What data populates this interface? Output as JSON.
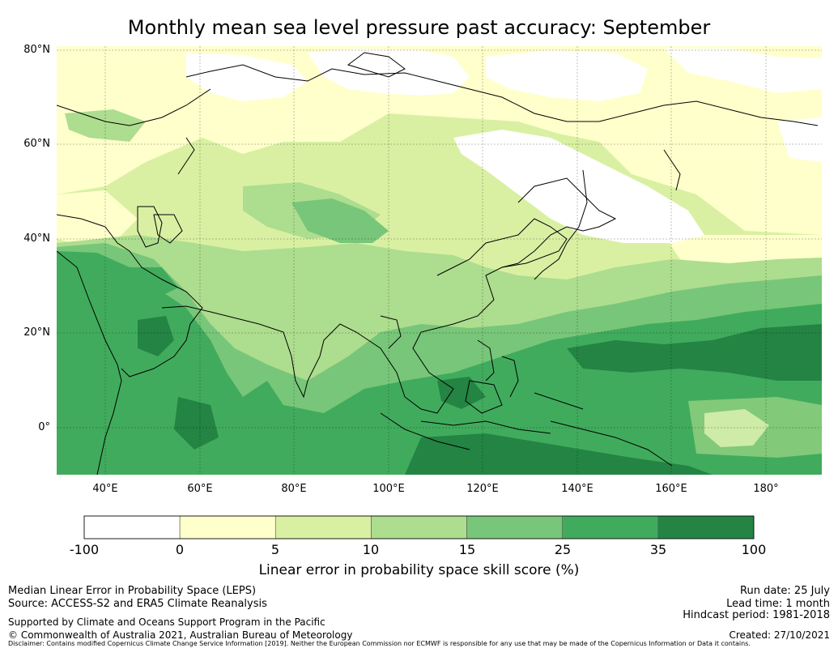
{
  "title": "Monthly mean sea level pressure past accuracy: September",
  "map": {
    "lat_labels": [
      "80°N",
      "60°N",
      "40°N",
      "20°N",
      "0°"
    ],
    "lon_labels": [
      "40°E",
      "60°E",
      "80°E",
      "100°E",
      "120°E",
      "140°E",
      "160°E",
      "180°"
    ],
    "lon_range": [
      30,
      192
    ],
    "lat_range": [
      -10,
      80
    ]
  },
  "colorbar": {
    "ticks": [
      "-100",
      "0",
      "5",
      "10",
      "15",
      "25",
      "35",
      "100"
    ],
    "colors": [
      "#ffffff",
      "#ffffcc",
      "#d9f0a3",
      "#addd8e",
      "#78c679",
      "#41ab5d",
      "#238443"
    ],
    "label": "Linear error in probability space skill score (%)"
  },
  "footer": {
    "line1": "Median Linear Error in Probability Space (LEPS)",
    "line2": "Source: ACCESS-S2 and ERA5 Climate Reanalysis",
    "supported": "Supported by Climate and Oceans Support Program in the Pacific",
    "copyright": "© Commonwealth of Australia 2021, Australian Bureau of Meteorology",
    "run_date": "Run date: 25 July",
    "lead_time": "Lead time: 1 month",
    "hindcast": "Hindcast period: 1981-2018",
    "created": "Created: 27/10/2021",
    "disclaimer": "Disclaimer: Contains modified Copernicus Climate Change Service Information [2019]. Neither the European Commission nor ECMWF is responsible for any use that may be made of the Copernicus Information or Data it contains."
  }
}
